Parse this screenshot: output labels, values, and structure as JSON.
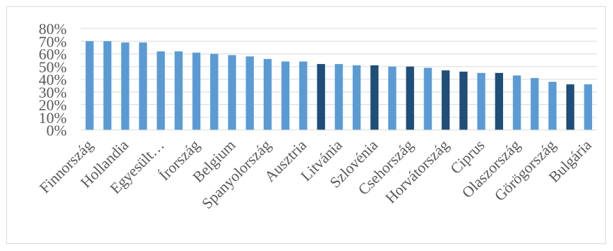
{
  "chart_data": {
    "type": "bar",
    "title": "",
    "xlabel": "",
    "ylabel": "",
    "ylim": [
      0,
      80
    ],
    "ytick_labels": [
      "0%",
      "10%",
      "20%",
      "30%",
      "40%",
      "50%",
      "60%",
      "70%",
      "80%"
    ],
    "grid": true,
    "legend": "none",
    "colors": {
      "default": "#5b9bd5",
      "highlight": "#1f4e79"
    },
    "categories": [
      "Finnország",
      "",
      "Hollandia",
      "",
      "Egyesült…",
      "",
      "Írország",
      "",
      "Belgium",
      "",
      "Spanyolország",
      "",
      "Ausztria",
      "",
      "Litvánia",
      "",
      "Szlovénia",
      "",
      "Csehország",
      "",
      "Horvátország",
      "",
      "Ciprus",
      "",
      "Olaszország",
      "",
      "Görögország",
      "",
      "Bulgária"
    ],
    "values": [
      70,
      70,
      69,
      69,
      62,
      62,
      61,
      60,
      59,
      58,
      56,
      54,
      54,
      52,
      52,
      51,
      51,
      50,
      50,
      49,
      47,
      46,
      45,
      45,
      43,
      41,
      38,
      36,
      36
    ],
    "highlighted": [
      false,
      false,
      false,
      false,
      false,
      false,
      false,
      false,
      false,
      false,
      false,
      false,
      false,
      true,
      false,
      false,
      true,
      false,
      true,
      false,
      true,
      true,
      false,
      true,
      false,
      false,
      false,
      true,
      false
    ]
  }
}
